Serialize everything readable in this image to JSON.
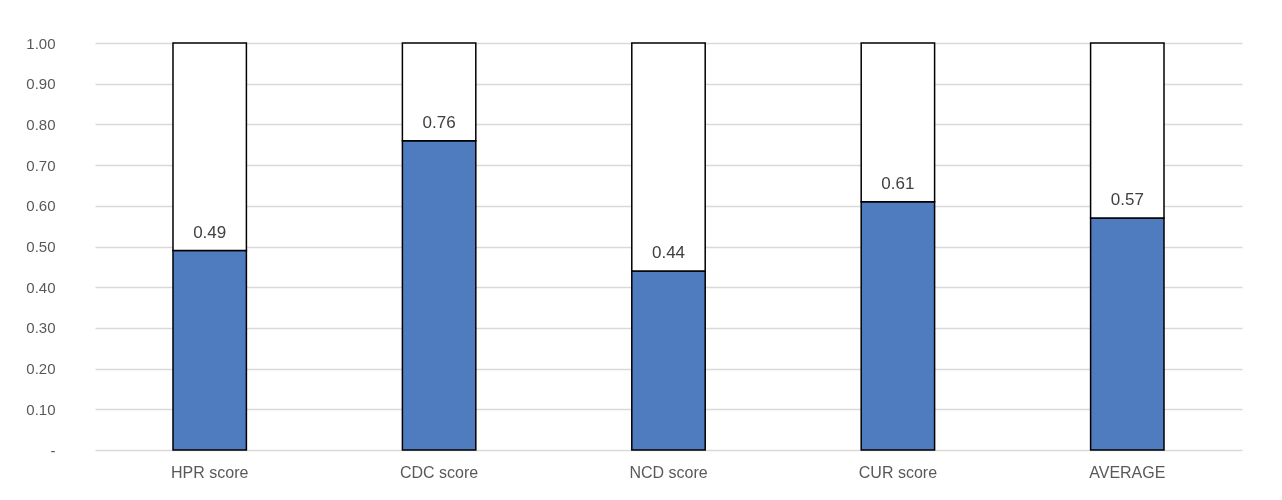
{
  "chart_data": {
    "type": "bar",
    "stacked": true,
    "categories": [
      "HPR score",
      "CDC score",
      "NCD score",
      "CUR score",
      "AVERAGE"
    ],
    "series": [
      {
        "color": "#4f7bbf",
        "values": [
          0.49,
          0.76,
          0.44,
          0.61,
          0.57
        ],
        "value_labels": [
          "0.49",
          "0.76",
          "0.44",
          "0.61",
          "0.57"
        ]
      },
      {
        "color": "#ffffff",
        "values": [
          0.51,
          0.24,
          0.56,
          0.39,
          0.43
        ]
      }
    ],
    "ylim": [
      0,
      1
    ],
    "yticks": [
      {
        "value": 0,
        "label": "-"
      },
      {
        "value": 0.1,
        "label": "0.10"
      },
      {
        "value": 0.2,
        "label": "0.20"
      },
      {
        "value": 0.3,
        "label": "0.30"
      },
      {
        "value": 0.4,
        "label": "0.40"
      },
      {
        "value": 0.5,
        "label": "0.50"
      },
      {
        "value": 0.6,
        "label": "0.60"
      },
      {
        "value": 0.7,
        "label": "0.70"
      },
      {
        "value": 0.8,
        "label": "0.80"
      },
      {
        "value": 0.9,
        "label": "0.90"
      },
      {
        "value": 1,
        "label": "1.00"
      }
    ],
    "grid": "y"
  }
}
